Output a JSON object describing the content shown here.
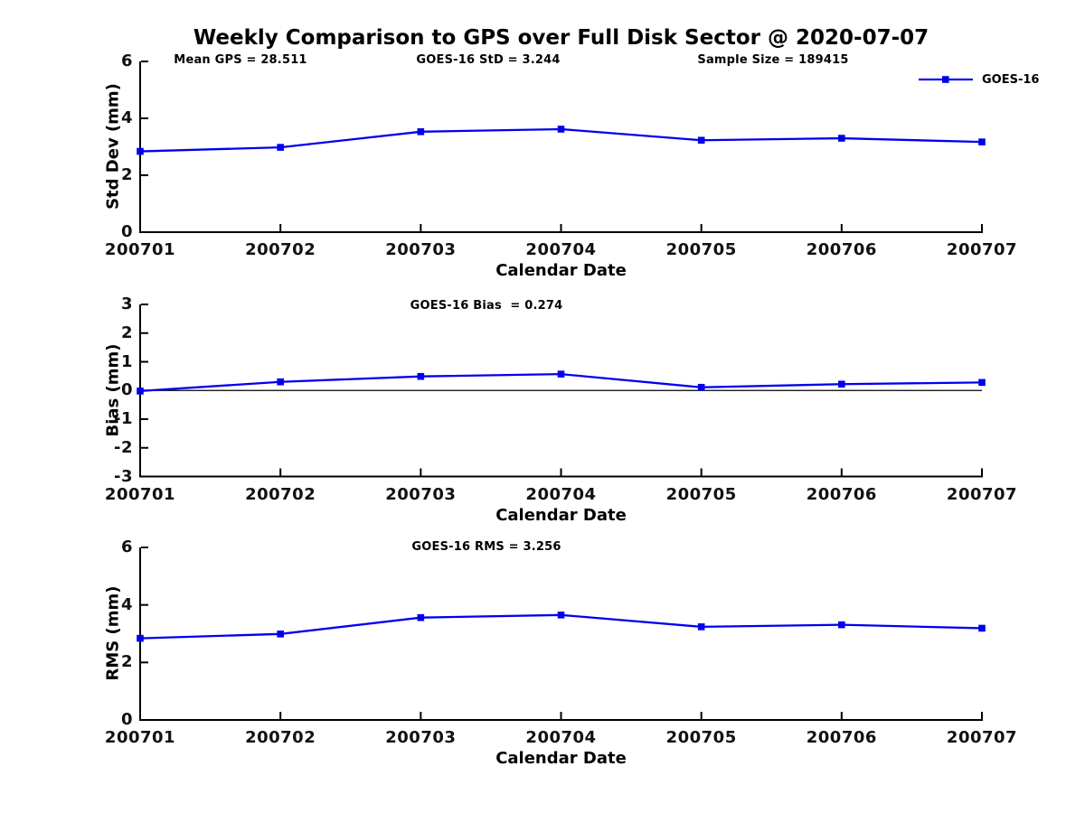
{
  "figure": {
    "title": "Weekly Comparison to GPS over Full Disk Sector @ 2020-07-07"
  },
  "legend": {
    "label": "GOES-16",
    "line_color": "#0000ee"
  },
  "chart_data": [
    {
      "type": "line",
      "title": "",
      "categories": [
        "200701",
        "200702",
        "200703",
        "200704",
        "200705",
        "200706",
        "200707"
      ],
      "series": [
        {
          "name": "GOES-16",
          "values": [
            2.84,
            2.98,
            3.53,
            3.62,
            3.23,
            3.3,
            3.17
          ]
        }
      ],
      "xlabel": "Calendar Date",
      "ylabel": "Std Dev (mm)",
      "ylim": [
        0,
        6
      ],
      "yticks": [
        0,
        2,
        4,
        6
      ],
      "annotations": [
        "Mean GPS = 28.511",
        "GOES-16 StD = 3.244",
        "Sample Size = 189415"
      ],
      "legend_position": "top-right",
      "grid": false,
      "zero_line": false,
      "line_color": "#0000ee",
      "marker": "square"
    },
    {
      "type": "line",
      "title": "",
      "categories": [
        "200701",
        "200702",
        "200703",
        "200704",
        "200705",
        "200706",
        "200707"
      ],
      "series": [
        {
          "name": "GOES-16",
          "values": [
            -0.02,
            0.3,
            0.49,
            0.57,
            0.11,
            0.22,
            0.28
          ]
        }
      ],
      "xlabel": "Calendar Date",
      "ylabel": "Bias (mm)",
      "ylim": [
        -3,
        3
      ],
      "yticks": [
        -3,
        -2,
        -1,
        0,
        1,
        2,
        3
      ],
      "annotations": [
        "GOES-16 Bias  = 0.274"
      ],
      "grid": false,
      "zero_line": true,
      "line_color": "#0000ee",
      "marker": "square"
    },
    {
      "type": "line",
      "title": "",
      "categories": [
        "200701",
        "200702",
        "200703",
        "200704",
        "200705",
        "200706",
        "200707"
      ],
      "series": [
        {
          "name": "GOES-16",
          "values": [
            2.84,
            2.99,
            3.56,
            3.65,
            3.24,
            3.31,
            3.19
          ]
        }
      ],
      "xlabel": "Calendar Date",
      "ylabel": "RMS (mm)",
      "ylim": [
        0,
        6
      ],
      "yticks": [
        0,
        2,
        4,
        6
      ],
      "annotations": [
        "GOES-16 RMS = 3.256"
      ],
      "grid": false,
      "zero_line": false,
      "line_color": "#0000ee",
      "marker": "square"
    }
  ]
}
